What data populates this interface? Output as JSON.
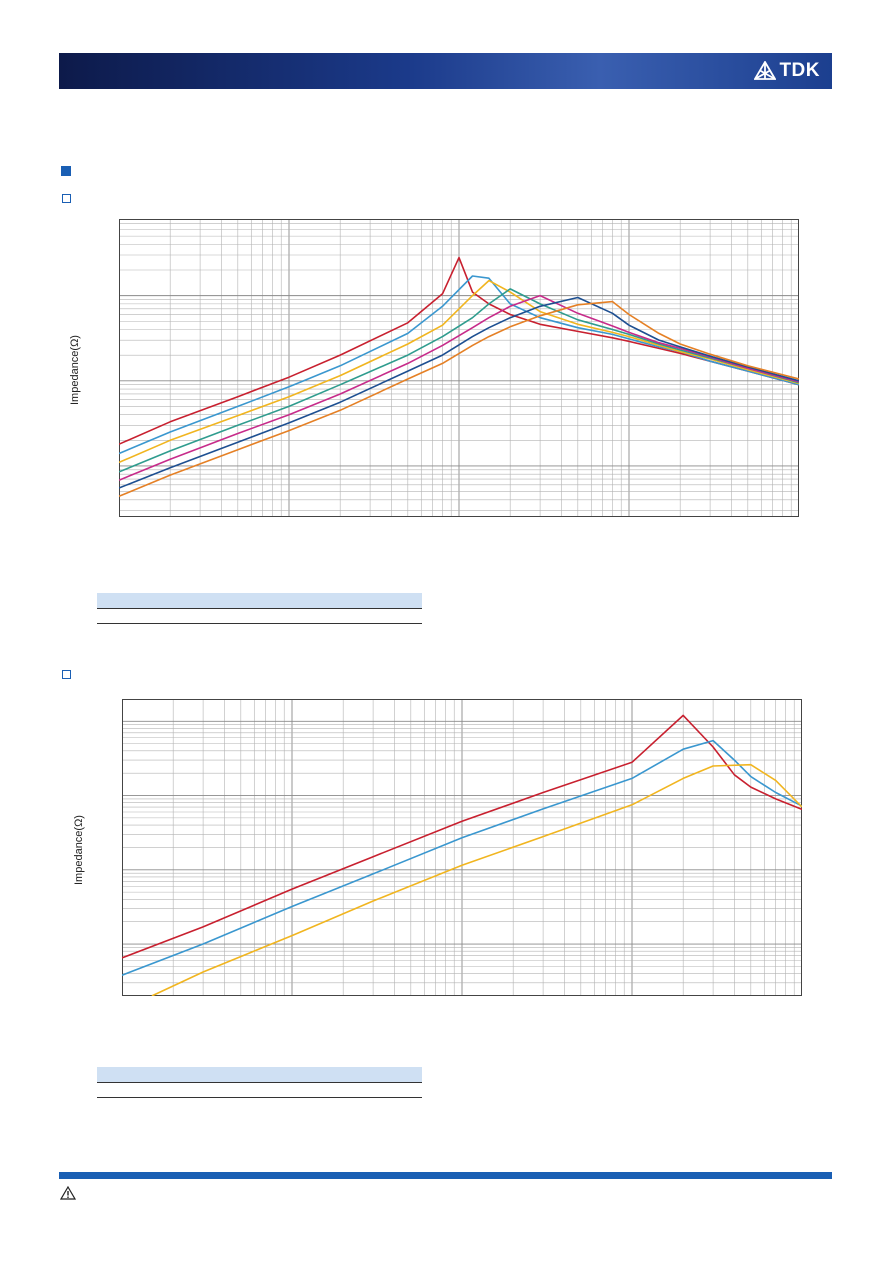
{
  "header": {
    "logo_text": "TDK",
    "logo_icon": "tdk-logo-icon"
  },
  "charts": [
    {
      "ylabel": "Impedance(Ω)"
    },
    {
      "ylabel": "Impedance(Ω)"
    }
  ],
  "footer": {
    "warning_icon": "warning-icon"
  },
  "colors": {
    "header_bar": "#1b3a8a",
    "accent": "#1a5fb4",
    "table_header": "#cfe0f3"
  },
  "chart_data": [
    {
      "type": "line",
      "title": "",
      "xlabel": "",
      "ylabel": "Impedance(Ω)",
      "x_scale": "log",
      "y_scale": "log",
      "grid": true,
      "series": [
        {
          "color": "#c8202f",
          "x": [
            1,
            2,
            5,
            10,
            20,
            50,
            80,
            100,
            120,
            150,
            200,
            300,
            500,
            800,
            1000,
            1500,
            2000,
            3000,
            5000,
            10000
          ],
          "y": [
            1.8,
            3.3,
            6.5,
            11,
            20,
            48,
            105,
            280,
            110,
            80,
            60,
            46,
            38,
            32,
            29,
            24,
            21,
            17,
            13,
            9
          ]
        },
        {
          "color": "#3a97cf",
          "x": [
            1,
            2,
            5,
            10,
            20,
            50,
            80,
            120,
            150,
            200,
            300,
            500,
            800,
            1000,
            1500,
            2000,
            3000,
            5000,
            10000
          ],
          "y": [
            1.4,
            2.5,
            5,
            8.5,
            15,
            36,
            75,
            170,
            160,
            80,
            55,
            42,
            35,
            31,
            25,
            22,
            17,
            13,
            9
          ]
        },
        {
          "color": "#f1b51f",
          "x": [
            1,
            2,
            5,
            10,
            20,
            50,
            80,
            120,
            150,
            200,
            300,
            500,
            800,
            1000,
            1500,
            2000,
            3000,
            5000,
            10000
          ],
          "y": [
            1.1,
            2.0,
            3.9,
            6.5,
            11.5,
            27,
            45,
            100,
            150,
            110,
            65,
            46,
            37,
            33,
            26,
            22,
            18,
            13.5,
            9.3
          ]
        },
        {
          "color": "#2f9c8e",
          "x": [
            1,
            2,
            5,
            10,
            20,
            50,
            80,
            120,
            150,
            200,
            300,
            500,
            800,
            1000,
            1500,
            2000,
            3000,
            5000,
            10000
          ],
          "y": [
            0.85,
            1.5,
            3,
            5,
            9,
            20,
            33,
            55,
            80,
            120,
            80,
            52,
            40,
            35,
            27,
            23,
            18.5,
            14,
            9.5
          ]
        },
        {
          "color": "#c72b8a",
          "x": [
            1,
            2,
            5,
            10,
            20,
            50,
            80,
            120,
            150,
            200,
            300,
            500,
            800,
            1000,
            1500,
            2000,
            3000,
            5000,
            10000
          ],
          "y": [
            0.68,
            1.2,
            2.4,
            4,
            7,
            16,
            26,
            42,
            55,
            75,
            100,
            62,
            44,
            37,
            28,
            24,
            19,
            14,
            9.7
          ]
        },
        {
          "color": "#1d4f91",
          "x": [
            1,
            2,
            5,
            10,
            20,
            50,
            80,
            120,
            150,
            200,
            300,
            500,
            800,
            1000,
            1500,
            2000,
            3000,
            5000,
            10000
          ],
          "y": [
            0.55,
            0.95,
            1.9,
            3.2,
            5.6,
            13,
            20,
            33,
            42,
            55,
            75,
            95,
            62,
            45,
            30,
            25,
            19.5,
            14.5,
            10
          ]
        },
        {
          "color": "#e58025",
          "x": [
            1,
            2,
            5,
            10,
            20,
            50,
            80,
            120,
            150,
            200,
            300,
            500,
            800,
            1000,
            1500,
            2000,
            3000,
            5000,
            10000
          ],
          "y": [
            0.44,
            0.78,
            1.55,
            2.6,
            4.5,
            10.5,
            16,
            26,
            33,
            43,
            58,
            78,
            85,
            60,
            36,
            27,
            20.5,
            15,
            10.5
          ]
        }
      ]
    },
    {
      "type": "line",
      "title": "",
      "xlabel": "",
      "ylabel": "Impedance(Ω)",
      "x_scale": "log",
      "y_scale": "log",
      "grid": true,
      "series": [
        {
          "color": "#c8202f",
          "x": [
            1,
            3,
            10,
            30,
            100,
            300,
            1000,
            2000,
            3000,
            4000,
            5000,
            7000,
            10000
          ],
          "y": [
            0.65,
            1.7,
            5.5,
            15,
            45,
            110,
            280,
            1200,
            450,
            190,
            130,
            90,
            65
          ]
        },
        {
          "color": "#3a97cf",
          "x": [
            1,
            3,
            10,
            30,
            100,
            300,
            1000,
            2000,
            3000,
            4000,
            5000,
            7000,
            10000
          ],
          "y": [
            0.38,
            1.0,
            3.2,
            8.8,
            27,
            66,
            170,
            420,
            550,
            300,
            180,
            110,
            72
          ]
        },
        {
          "color": "#f1b51f",
          "x": [
            1.5,
            3,
            10,
            30,
            100,
            300,
            1000,
            2000,
            3000,
            5000,
            7000,
            10000
          ],
          "y": [
            0.2,
            0.42,
            1.3,
            3.8,
            11.5,
            28,
            75,
            170,
            250,
            260,
            160,
            70
          ]
        }
      ]
    }
  ]
}
